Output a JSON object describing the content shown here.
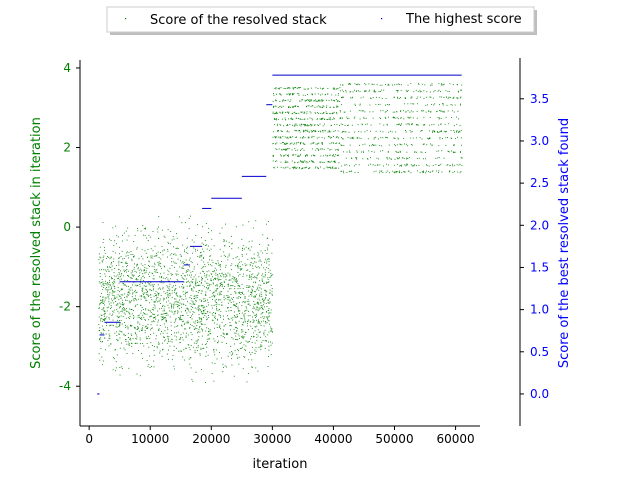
{
  "chart_data": {
    "type": "scatter",
    "xlabel": "iteration",
    "ylabel_left": "Score of the resolved stack in iteration",
    "ylabel_right": "Score of the best resolved stack found",
    "xlim": [
      -1500,
      64000
    ],
    "ylim_left": [
      -5.0,
      4.2
    ],
    "ylim_right": [
      -0.38,
      3.96
    ],
    "x_ticks": [
      0,
      10000,
      20000,
      30000,
      40000,
      50000,
      60000
    ],
    "y_ticks_left": [
      -4,
      -2,
      0,
      2,
      4
    ],
    "y_ticks_right": [
      0.0,
      0.5,
      1.0,
      1.5,
      2.0,
      2.5,
      3.0,
      3.5
    ],
    "legend_position": "top-center",
    "grid": false,
    "colors": {
      "score": "#008000",
      "best": "#0000cc",
      "axis_left": "#008000",
      "axis_right": "#0000ff"
    },
    "series": [
      {
        "name": "Score of the resolved stack",
        "axis": "left",
        "color": "#008000",
        "clusters": [
          {
            "x": [
              1500,
              30000
            ],
            "y": [
              -3.9,
              1.5
            ],
            "density": "high"
          },
          {
            "x": [
              30000,
              41000
            ],
            "y": [
              1.5,
              3.5
            ],
            "density": "medium"
          },
          {
            "x": [
              41000,
              61000
            ],
            "y": [
              1.4,
              3.6
            ],
            "density": "medium"
          }
        ]
      },
      {
        "name": "The highest score",
        "axis": "right",
        "color": "#0000cc",
        "steps": [
          {
            "x0": 1300,
            "x1": 1700,
            "y": 0.0
          },
          {
            "x0": 1700,
            "x1": 2500,
            "y": 0.7
          },
          {
            "x0": 2500,
            "x1": 5000,
            "y": 0.85
          },
          {
            "x0": 5000,
            "x1": 15500,
            "y": 1.33
          },
          {
            "x0": 15500,
            "x1": 16500,
            "y": 1.53
          },
          {
            "x0": 16500,
            "x1": 18500,
            "y": 1.75
          },
          {
            "x0": 18500,
            "x1": 20000,
            "y": 2.2
          },
          {
            "x0": 20000,
            "x1": 25000,
            "y": 2.32
          },
          {
            "x0": 25000,
            "x1": 29000,
            "y": 2.58
          },
          {
            "x0": 29000,
            "x1": 30000,
            "y": 3.43
          },
          {
            "x0": 30000,
            "x1": 61000,
            "y": 3.78
          }
        ]
      }
    ]
  }
}
